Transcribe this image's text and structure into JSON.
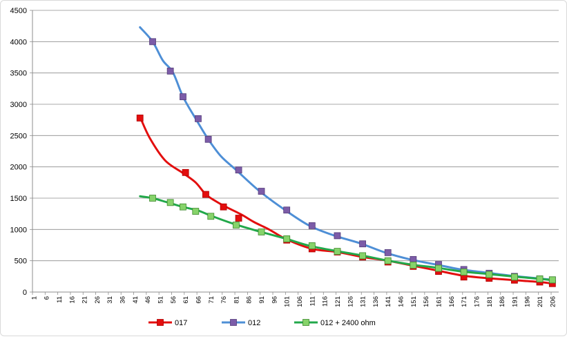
{
  "chart_data": {
    "type": "line",
    "title": "",
    "xlabel": "",
    "ylabel": "",
    "grid": true,
    "legend_position": "bottom",
    "ylim": [
      0,
      4500
    ],
    "y_ticks": [
      0,
      500,
      1000,
      1500,
      2000,
      2500,
      3000,
      3500,
      4000,
      4500
    ],
    "x_tick_labels": [
      "1",
      "6",
      "11",
      "16",
      "21",
      "26",
      "31",
      "36",
      "41",
      "46",
      "51",
      "56",
      "61",
      "66",
      "71",
      "76",
      "81",
      "86",
      "91",
      "96",
      "101",
      "106",
      "111",
      "116",
      "121",
      "126",
      "131",
      "136",
      "141",
      "146",
      "151",
      "156",
      "161",
      "166",
      "171",
      "176",
      "181",
      "186",
      "191",
      "196",
      "201",
      "206"
    ],
    "series": [
      {
        "name": "017",
        "color": "#e30e0e",
        "marker_color": "#e30e0e",
        "marker_stroke": "#b00000",
        "curve": [
          [
            43,
            2800
          ],
          [
            47,
            2450
          ],
          [
            53,
            2100
          ],
          [
            60,
            1900
          ],
          [
            65,
            1750
          ],
          [
            69,
            1560
          ],
          [
            73,
            1450
          ],
          [
            77,
            1360
          ],
          [
            83,
            1240
          ],
          [
            88,
            1120
          ],
          [
            94,
            1000
          ],
          [
            101,
            840
          ],
          [
            111,
            690
          ],
          [
            121,
            640
          ],
          [
            131,
            560
          ],
          [
            141,
            500
          ],
          [
            151,
            420
          ],
          [
            161,
            340
          ],
          [
            171,
            260
          ],
          [
            181,
            220
          ],
          [
            191,
            190
          ],
          [
            201,
            160
          ],
          [
            206,
            135
          ]
        ],
        "markers": [
          [
            43,
            2780
          ],
          [
            61,
            1910
          ],
          [
            69,
            1560
          ],
          [
            76,
            1360
          ],
          [
            82,
            1180
          ],
          [
            101,
            830
          ],
          [
            111,
            690
          ],
          [
            121,
            640
          ],
          [
            131,
            560
          ],
          [
            141,
            480
          ],
          [
            151,
            410
          ],
          [
            161,
            330
          ],
          [
            171,
            240
          ],
          [
            181,
            220
          ],
          [
            191,
            190
          ],
          [
            201,
            160
          ],
          [
            206,
            135
          ]
        ]
      },
      {
        "name": "012",
        "color": "#4e8fd6",
        "marker_color": "#7c5ca8",
        "marker_stroke": "#553d7a",
        "curve": [
          [
            43,
            4230
          ],
          [
            48,
            4000
          ],
          [
            52,
            3700
          ],
          [
            56,
            3510
          ],
          [
            60,
            3120
          ],
          [
            65,
            2770
          ],
          [
            70,
            2440
          ],
          [
            75,
            2170
          ],
          [
            81,
            1950
          ],
          [
            90,
            1620
          ],
          [
            100,
            1320
          ],
          [
            110,
            1060
          ],
          [
            120,
            900
          ],
          [
            130,
            780
          ],
          [
            140,
            630
          ],
          [
            150,
            520
          ],
          [
            160,
            440
          ],
          [
            170,
            360
          ],
          [
            180,
            310
          ],
          [
            190,
            260
          ],
          [
            200,
            220
          ],
          [
            206,
            195
          ]
        ],
        "markers": [
          [
            48,
            4000
          ],
          [
            55,
            3530
          ],
          [
            60,
            3120
          ],
          [
            66,
            2770
          ],
          [
            70,
            2440
          ],
          [
            82,
            1950
          ],
          [
            91,
            1610
          ],
          [
            101,
            1310
          ],
          [
            111,
            1060
          ],
          [
            121,
            900
          ],
          [
            131,
            770
          ],
          [
            141,
            630
          ],
          [
            151,
            520
          ],
          [
            161,
            440
          ],
          [
            171,
            360
          ],
          [
            181,
            300
          ],
          [
            191,
            250
          ],
          [
            201,
            210
          ],
          [
            206,
            195
          ]
        ]
      },
      {
        "name": "012 + 2400 ohm",
        "color": "#22a84a",
        "marker_color": "#86d36a",
        "marker_stroke": "#3f8a2e",
        "curve": [
          [
            43,
            1530
          ],
          [
            48,
            1500
          ],
          [
            54,
            1430
          ],
          [
            60,
            1360
          ],
          [
            66,
            1300
          ],
          [
            71,
            1220
          ],
          [
            80,
            1090
          ],
          [
            90,
            970
          ],
          [
            100,
            860
          ],
          [
            110,
            740
          ],
          [
            120,
            660
          ],
          [
            130,
            590
          ],
          [
            140,
            510
          ],
          [
            150,
            440
          ],
          [
            160,
            390
          ],
          [
            170,
            330
          ],
          [
            180,
            290
          ],
          [
            190,
            250
          ],
          [
            200,
            215
          ],
          [
            206,
            190
          ]
        ],
        "markers": [
          [
            48,
            1500
          ],
          [
            55,
            1430
          ],
          [
            60,
            1360
          ],
          [
            65,
            1290
          ],
          [
            71,
            1210
          ],
          [
            81,
            1070
          ],
          [
            91,
            960
          ],
          [
            101,
            850
          ],
          [
            111,
            740
          ],
          [
            121,
            650
          ],
          [
            131,
            580
          ],
          [
            141,
            500
          ],
          [
            151,
            430
          ],
          [
            161,
            380
          ],
          [
            171,
            320
          ],
          [
            181,
            280
          ],
          [
            191,
            240
          ],
          [
            201,
            210
          ],
          [
            206,
            195
          ]
        ]
      }
    ]
  }
}
